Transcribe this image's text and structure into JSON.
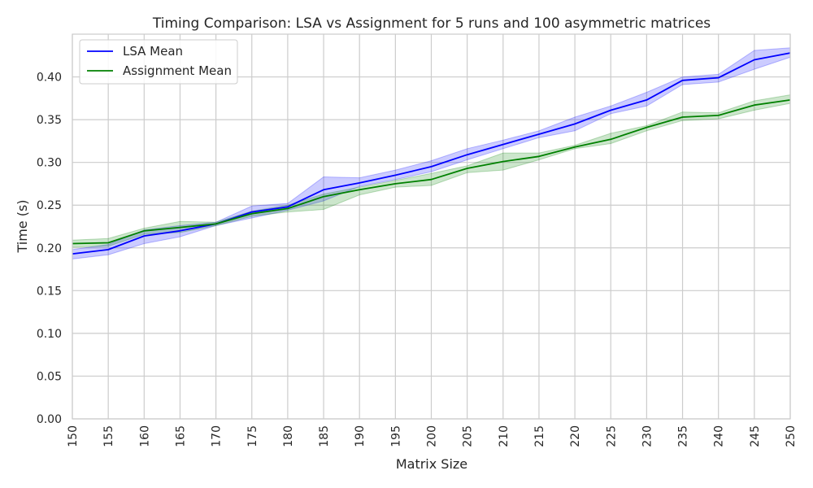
{
  "chart_data": {
    "type": "line",
    "title": "Timing Comparison: LSA vs Assignment for 5 runs and 100 asymmetric matrices",
    "xlabel": "Matrix Size",
    "ylabel": "Time (s)",
    "xlim": [
      150,
      250
    ],
    "ylim": [
      0.0,
      0.45
    ],
    "x": [
      150,
      155,
      160,
      165,
      170,
      175,
      180,
      185,
      190,
      195,
      200,
      205,
      210,
      215,
      220,
      225,
      230,
      235,
      240,
      245,
      250
    ],
    "x_tick_labels": [
      "150",
      "155",
      "160",
      "165",
      "170",
      "175",
      "180",
      "185",
      "190",
      "195",
      "200",
      "205",
      "210",
      "215",
      "220",
      "225",
      "230",
      "235",
      "240",
      "245",
      "250"
    ],
    "y_ticks": [
      0.0,
      0.05,
      0.1,
      0.15,
      0.2,
      0.25,
      0.3,
      0.35,
      0.4
    ],
    "y_tick_labels": [
      "0.00",
      "0.05",
      "0.10",
      "0.15",
      "0.20",
      "0.25",
      "0.30",
      "0.35",
      "0.40"
    ],
    "grid": true,
    "legend_position": "top-left",
    "series": [
      {
        "name": "LSA Mean",
        "color": "#0000ff",
        "values": [
          0.193,
          0.198,
          0.214,
          0.22,
          0.228,
          0.242,
          0.248,
          0.268,
          0.276,
          0.285,
          0.295,
          0.309,
          0.321,
          0.333,
          0.345,
          0.361,
          0.373,
          0.396,
          0.399,
          0.42,
          0.428
        ],
        "lower": [
          0.187,
          0.192,
          0.205,
          0.213,
          0.226,
          0.235,
          0.244,
          0.255,
          0.272,
          0.28,
          0.289,
          0.303,
          0.316,
          0.329,
          0.337,
          0.357,
          0.366,
          0.391,
          0.394,
          0.409,
          0.423
        ],
        "upper": [
          0.198,
          0.204,
          0.221,
          0.226,
          0.23,
          0.249,
          0.252,
          0.283,
          0.282,
          0.291,
          0.302,
          0.316,
          0.326,
          0.337,
          0.353,
          0.366,
          0.382,
          0.4,
          0.403,
          0.431,
          0.434
        ]
      },
      {
        "name": "Assignment Mean",
        "color": "#008000",
        "values": [
          0.205,
          0.206,
          0.22,
          0.224,
          0.228,
          0.24,
          0.246,
          0.26,
          0.268,
          0.275,
          0.28,
          0.293,
          0.301,
          0.307,
          0.318,
          0.327,
          0.341,
          0.353,
          0.355,
          0.367,
          0.373
        ],
        "lower": [
          0.201,
          0.202,
          0.216,
          0.218,
          0.226,
          0.237,
          0.242,
          0.245,
          0.262,
          0.271,
          0.273,
          0.288,
          0.291,
          0.303,
          0.316,
          0.322,
          0.337,
          0.349,
          0.351,
          0.361,
          0.369
        ],
        "upper": [
          0.209,
          0.211,
          0.223,
          0.231,
          0.23,
          0.243,
          0.25,
          0.263,
          0.271,
          0.279,
          0.287,
          0.296,
          0.311,
          0.311,
          0.32,
          0.334,
          0.343,
          0.359,
          0.358,
          0.372,
          0.379
        ]
      }
    ]
  }
}
